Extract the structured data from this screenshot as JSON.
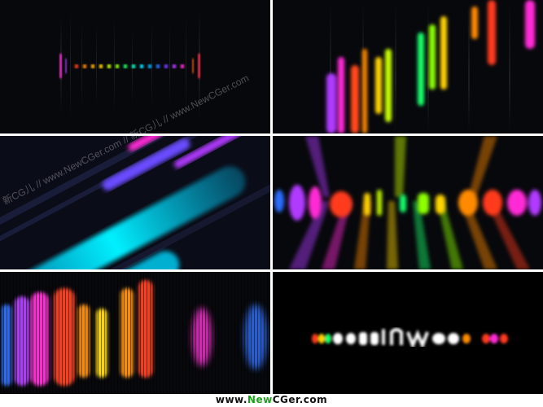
{
  "watermark": {
    "text": "新CG儿 // www.NewCGer.com // 新CG儿 // www.NewCGer.com"
  },
  "footer": {
    "prefix": "www.",
    "brand_new": "New",
    "brand_cger": "CGer",
    "suffix": ".com"
  },
  "colors": {
    "rainbow": [
      "#ff2a6d",
      "#ff3b1f",
      "#ff8a00",
      "#ffd400",
      "#8cff00",
      "#19ff6a",
      "#00e5ff",
      "#2a6dff",
      "#7a3bff",
      "#ff2bd6"
    ],
    "cyan": "#00e0ff",
    "panel_bg": "#07080c"
  }
}
